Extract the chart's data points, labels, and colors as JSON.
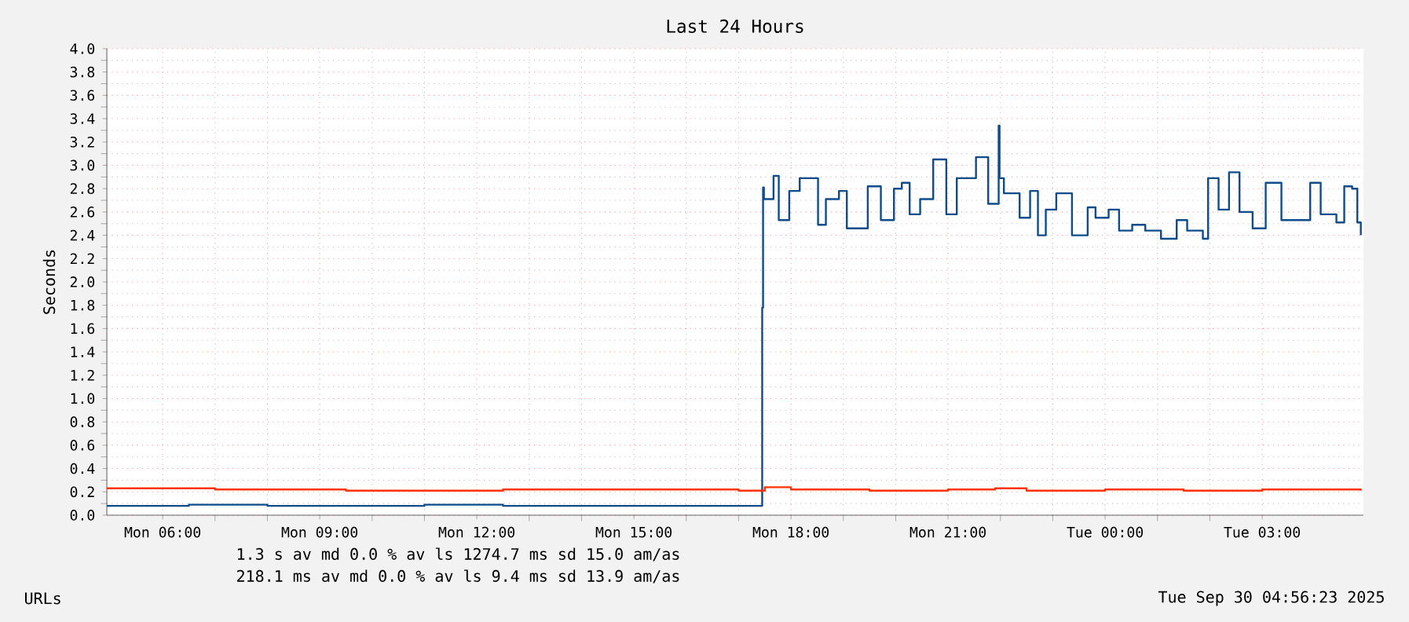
{
  "chart_data": {
    "type": "step",
    "title": "Last 24 Hours",
    "ylabel": "Seconds",
    "xlim": [
      "2025-09-29T04:56",
      "2025-09-30T04:56"
    ],
    "xticks": [
      {
        "value": "2025-09-29T06:00",
        "label": "Mon 06:00"
      },
      {
        "value": "2025-09-29T09:00",
        "label": "Mon 09:00"
      },
      {
        "value": "2025-09-29T12:00",
        "label": "Mon 12:00"
      },
      {
        "value": "2025-09-29T15:00",
        "label": "Mon 15:00"
      },
      {
        "value": "2025-09-29T18:00",
        "label": "Mon 18:00"
      },
      {
        "value": "2025-09-29T21:00",
        "label": "Mon 21:00"
      },
      {
        "value": "2025-09-30T00:00",
        "label": "Tue 00:00"
      },
      {
        "value": "2025-09-30T03:00",
        "label": "Tue 03:00"
      }
    ],
    "ylim": [
      0,
      4.0
    ],
    "yticks": [
      {
        "value": 0,
        "label": "0.0"
      },
      {
        "value": 0.2,
        "label": "0.2"
      },
      {
        "value": 0.4,
        "label": "0.4"
      },
      {
        "value": 0.6,
        "label": "0.6"
      },
      {
        "value": 0.8,
        "label": "0.8"
      },
      {
        "value": 1.0,
        "label": "1.0"
      },
      {
        "value": 1.2,
        "label": "1.2"
      },
      {
        "value": 1.4,
        "label": "1.4"
      },
      {
        "value": 1.6,
        "label": "1.6"
      },
      {
        "value": 1.8,
        "label": "1.8"
      },
      {
        "value": 2.0,
        "label": "2.0"
      },
      {
        "value": 2.2,
        "label": "2.2"
      },
      {
        "value": 2.4,
        "label": "2.4"
      },
      {
        "value": 2.6,
        "label": "2.6"
      },
      {
        "value": 2.8,
        "label": "2.8"
      },
      {
        "value": 3.0,
        "label": "3.0"
      },
      {
        "value": 3.2,
        "label": "3.2"
      },
      {
        "value": 3.4,
        "label": "3.4"
      },
      {
        "value": 3.6,
        "label": "3.6"
      },
      {
        "value": 3.8,
        "label": "3.8"
      },
      {
        "value": 4.0,
        "label": "4.0"
      }
    ],
    "grid": true,
    "series": [
      {
        "color": "#0f4c8c",
        "x": [
          "2025-09-29T04:56",
          "2025-09-29T06:30",
          "2025-09-29T08:00",
          "2025-09-29T09:30",
          "2025-09-29T11:00",
          "2025-09-29T12:30",
          "2025-09-29T14:00",
          "2025-09-29T15:30",
          "2025-09-29T17:00",
          "2025-09-29T17:27",
          "2025-09-29T17:28",
          "2025-09-29T17:29",
          "2025-09-29T17:40",
          "2025-09-29T17:46",
          "2025-09-29T17:58",
          "2025-09-29T18:10",
          "2025-09-29T18:31",
          "2025-09-29T18:40",
          "2025-09-29T18:55",
          "2025-09-29T19:04",
          "2025-09-29T19:28",
          "2025-09-29T19:43",
          "2025-09-29T19:58",
          "2025-09-29T20:07",
          "2025-09-29T20:16",
          "2025-09-29T20:28",
          "2025-09-29T20:43",
          "2025-09-29T20:58",
          "2025-09-29T21:10",
          "2025-09-29T21:32",
          "2025-09-29T21:46",
          "2025-09-29T21:58",
          "2025-09-29T21:59",
          "2025-09-29T22:04",
          "2025-09-29T22:22",
          "2025-09-29T22:34",
          "2025-09-29T22:43",
          "2025-09-29T22:52",
          "2025-09-29T23:04",
          "2025-09-29T23:22",
          "2025-09-29T23:40",
          "2025-09-29T23:49",
          "2025-09-30T00:04",
          "2025-09-30T00:16",
          "2025-09-30T00:31",
          "2025-09-30T00:46",
          "2025-09-30T01:04",
          "2025-09-30T01:22",
          "2025-09-30T01:34",
          "2025-09-30T01:52",
          "2025-09-30T01:58",
          "2025-09-30T02:10",
          "2025-09-30T02:22",
          "2025-09-30T02:34",
          "2025-09-30T02:49",
          "2025-09-30T03:04",
          "2025-09-30T03:22",
          "2025-09-30T03:55",
          "2025-09-30T04:07",
          "2025-09-30T04:25",
          "2025-09-30T04:34",
          "2025-09-30T04:43",
          "2025-09-30T04:49",
          "2025-09-30T04:53"
        ],
        "values": [
          0.08,
          0.09,
          0.08,
          0.08,
          0.09,
          0.08,
          0.08,
          0.08,
          0.08,
          1.78,
          2.81,
          2.71,
          2.91,
          2.53,
          2.78,
          2.89,
          2.49,
          2.71,
          2.78,
          2.46,
          2.82,
          2.53,
          2.8,
          2.85,
          2.58,
          2.71,
          3.05,
          2.58,
          2.89,
          3.07,
          2.67,
          3.34,
          2.89,
          2.76,
          2.55,
          2.78,
          2.4,
          2.62,
          2.76,
          2.4,
          2.64,
          2.55,
          2.62,
          2.44,
          2.49,
          2.44,
          2.37,
          2.53,
          2.44,
          2.37,
          2.89,
          2.62,
          2.94,
          2.6,
          2.46,
          2.85,
          2.53,
          2.85,
          2.58,
          2.51,
          2.82,
          2.8,
          2.51,
          2.4
        ]
      },
      {
        "color": "#ff3300",
        "x": [
          "2025-09-29T04:56",
          "2025-09-29T06:00",
          "2025-09-29T07:00",
          "2025-09-29T08:00",
          "2025-09-29T09:30",
          "2025-09-29T11:00",
          "2025-09-29T12:30",
          "2025-09-29T14:00",
          "2025-09-29T15:30",
          "2025-09-29T17:00",
          "2025-09-29T17:30",
          "2025-09-29T18:00",
          "2025-09-29T19:30",
          "2025-09-29T21:00",
          "2025-09-29T21:54",
          "2025-09-29T22:30",
          "2025-09-30T00:00",
          "2025-09-30T01:30",
          "2025-09-30T03:00",
          "2025-09-30T04:00",
          "2025-09-30T04:53"
        ],
        "values": [
          0.23,
          0.23,
          0.22,
          0.22,
          0.21,
          0.21,
          0.22,
          0.22,
          0.22,
          0.21,
          0.24,
          0.22,
          0.21,
          0.22,
          0.23,
          0.21,
          0.22,
          0.21,
          0.22,
          0.22,
          0.21
        ]
      }
    ],
    "annotations": [
      "1.3 s av md 0.0 % av ls 1274.7 ms sd 15.0 am/as",
      "218.1 ms av md 0.0 % av ls 9.4 ms sd 13.9 am/as",
      "URLs",
      "Tue Sep 30 04:56:23 2025"
    ]
  }
}
